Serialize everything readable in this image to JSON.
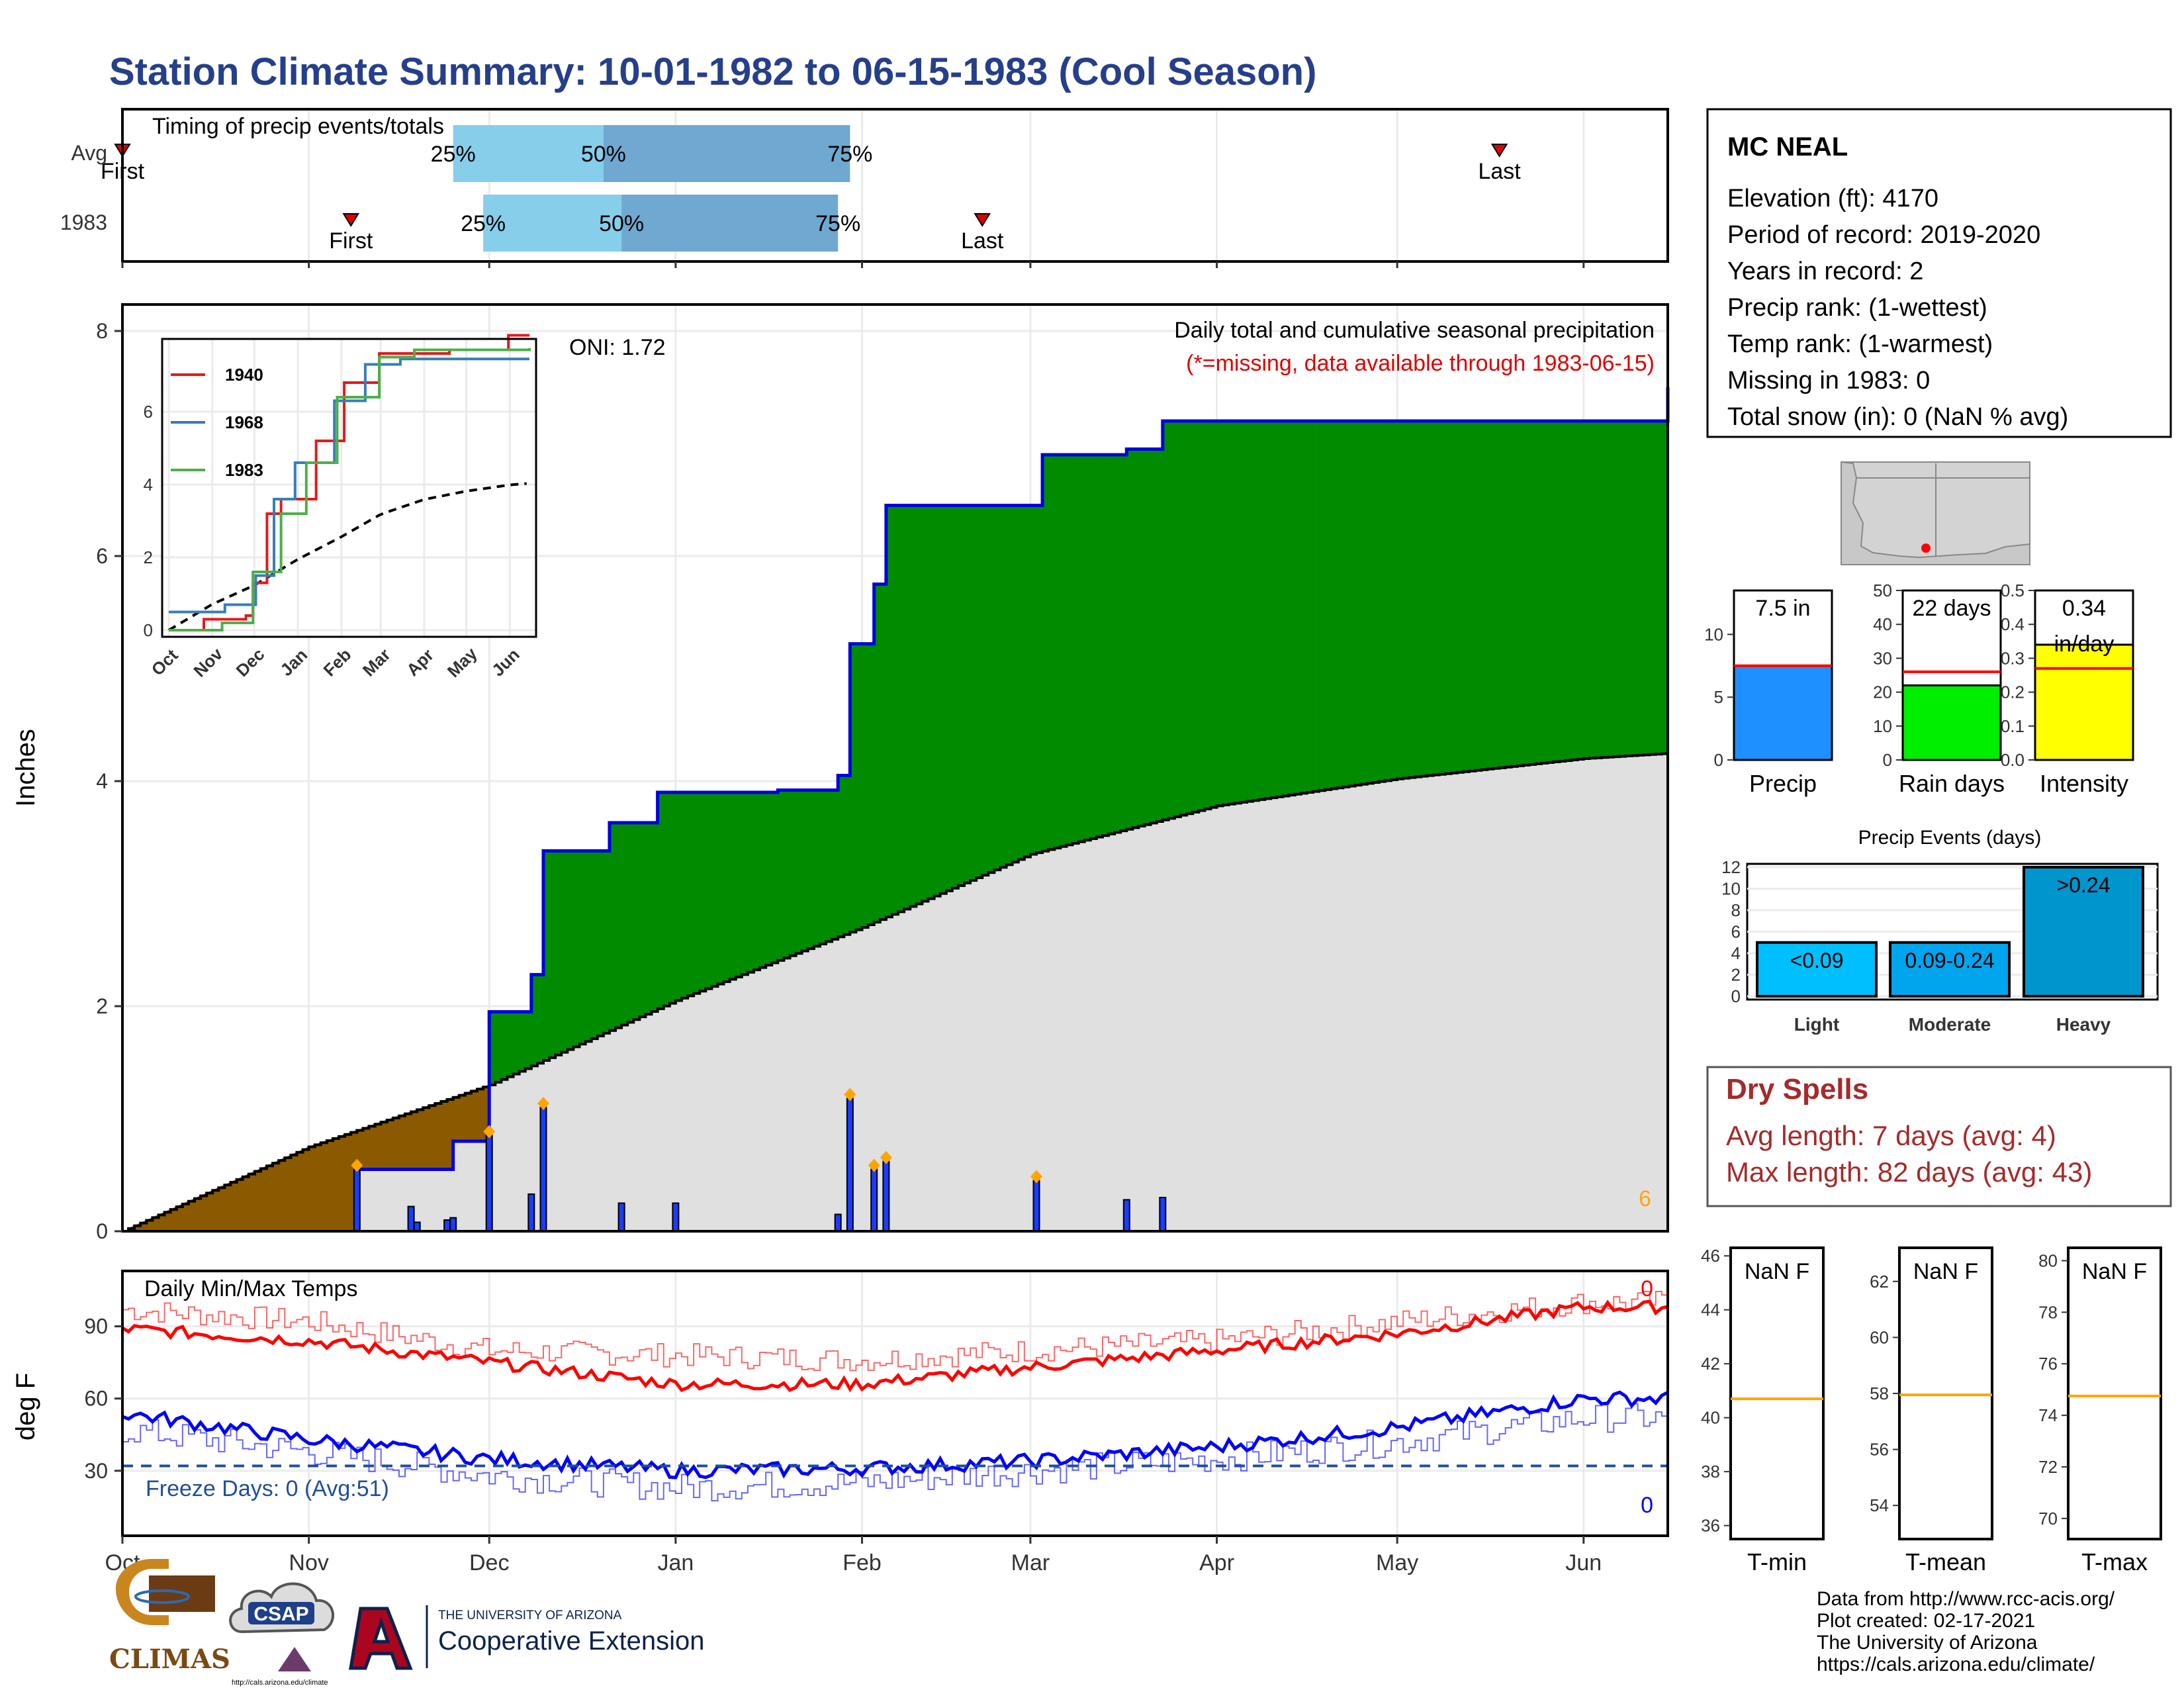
{
  "page": {
    "title": "Station Climate Summary: 10-01-1982 to 06-15-1983 (Cool Season)"
  },
  "timing": {
    "title": "Timing of precip events/totals",
    "rows": [
      {
        "label": "Avg",
        "first_label": "First",
        "last_label": "Last",
        "first_day": 0,
        "last_day": 229,
        "q25_day": 55,
        "q50_day": 80,
        "q75_day": 121,
        "p25": "25%",
        "p50": "50%",
        "p75": "75%"
      },
      {
        "label": "1983",
        "first_label": "First",
        "last_label": "Last",
        "first_day": 38,
        "last_day": 143,
        "q25_day": 60,
        "q50_day": 83,
        "q75_day": 119,
        "p25": "25%",
        "p50": "50%",
        "p75": "75%"
      }
    ],
    "colors": {
      "light": "#87ceeb",
      "dark": "#6fa8d0",
      "marker": "#e00000"
    }
  },
  "precip": {
    "ylabel": "Inches",
    "yticks": [
      "0",
      "2",
      "4",
      "6",
      "8"
    ],
    "oni": "ONI: 1.72",
    "caption": "Daily total and cumulative seasonal precipitation",
    "missing_note": "(*=missing, data available through 1983-06-15)",
    "corner_label": "6",
    "colors": {
      "above": "#008b00",
      "below": "#8b5a00",
      "avg_fill": "#e0e0e0",
      "daily": "#1a3cff",
      "marker": "#ffa500",
      "obs_line": "#0000e0"
    }
  },
  "inset": {
    "yticks": [
      "0",
      "2",
      "4",
      "6"
    ],
    "xticks": [
      "Oct",
      "Nov",
      "Dec",
      "Jan",
      "Feb",
      "Mar",
      "Apr",
      "May",
      "Jun"
    ],
    "legend": [
      {
        "name": "1940",
        "color": "#e41a1c"
      },
      {
        "name": "1968",
        "color": "#377eb8"
      },
      {
        "name": "1983",
        "color": "#4daf4a"
      }
    ]
  },
  "temps": {
    "title": "Daily Min/Max Temps",
    "ylabel": "deg F",
    "yticks": [
      "30",
      "60",
      "90"
    ],
    "freeze": "Freeze Days: 0 (Avg:51)",
    "max_count": "0",
    "min_count": "0",
    "colors": {
      "max": "#ff0000",
      "min": "#0000ff",
      "freeze": "#1f4e9c"
    }
  },
  "xaxis": {
    "months": [
      "Oct",
      "Nov",
      "Dec",
      "Jan",
      "Feb",
      "Mar",
      "Apr",
      "May",
      "Jun"
    ]
  },
  "station": {
    "name": "MC NEAL",
    "lines": [
      "Elevation (ft): 4170",
      "Period of record: 2019-2020",
      "Years in record: 2",
      "Precip rank:  (1-wettest)",
      "Temp rank:  (1-warmest)",
      "Missing in 1983: 0",
      "Total snow (in): 0 (NaN % avg)"
    ]
  },
  "mini_bars": [
    {
      "label": "Precip",
      "value_label": "7.5 in",
      "color": "#1e90ff",
      "ticks": [
        "0",
        "5",
        "10"
      ]
    },
    {
      "label": "Rain days",
      "value_label": "22 days",
      "color": "#00ee00",
      "ticks": [
        "0",
        "10",
        "20",
        "30",
        "40",
        "50"
      ]
    },
    {
      "label": "Intensity",
      "value_label": "0.34 in/day",
      "color": "#ffff00",
      "ticks": [
        "0.0",
        "0.1",
        "0.2",
        "0.3",
        "0.4",
        "0.5"
      ]
    }
  ],
  "events": {
    "title": "Precip Events (days)",
    "yticks": [
      "0",
      "2",
      "4",
      "6",
      "8",
      "10",
      "12"
    ],
    "categories": [
      "Light",
      "Moderate",
      "Heavy"
    ],
    "bar_labels": [
      "<0.09",
      "0.09-0.24",
      ">0.24"
    ],
    "colors": [
      "#00bfff",
      "#00a5ee",
      "#0095cc"
    ]
  },
  "dry_spells": {
    "title": "Dry Spells",
    "avg": "Avg length: 7 days (avg: 4)",
    "max": "Max length: 82 days (avg: 43)",
    "color": "#a52a2a"
  },
  "temp_boxes": [
    {
      "label": "T-min",
      "value_label": "NaN F",
      "ticks": [
        "36",
        "38",
        "40",
        "42",
        "44",
        "46"
      ]
    },
    {
      "label": "T-mean",
      "value_label": "NaN F",
      "ticks": [
        "54",
        "56",
        "58",
        "60",
        "62"
      ]
    },
    {
      "label": "T-max",
      "value_label": "NaN F",
      "ticks": [
        "70",
        "72",
        "74",
        "76",
        "78",
        "80"
      ]
    }
  ],
  "logos": {
    "climas": "CLIMAS",
    "csap": "CSAP",
    "csap_url": "http://cals.arizona.edu/climate",
    "ua_small": "THE UNIVERSITY OF ARIZONA",
    "ua_big": "Cooperative Extension"
  },
  "credits": [
    "Data from http://www.rcc-acis.org/",
    "Plot created: 02-17-2021",
    "The University of Arizona",
    "https://cals.arizona.edu/climate/"
  ],
  "chart_data": [
    {
      "type": "bar",
      "title": "Timing of precip events/totals",
      "categories": [
        "Avg",
        "1983"
      ],
      "note": "x in days since Oct 1",
      "series": [
        {
          "name": "First",
          "values": [
            0,
            38
          ]
        },
        {
          "name": "25%",
          "values": [
            55,
            60
          ]
        },
        {
          "name": "50%",
          "values": [
            80,
            83
          ]
        },
        {
          "name": "75%",
          "values": [
            121,
            119
          ]
        },
        {
          "name": "Last",
          "values": [
            229,
            143
          ]
        }
      ]
    },
    {
      "type": "area",
      "title": "Daily total and cumulative seasonal precipitation",
      "ylabel": "Inches",
      "ylim": [
        0,
        8
      ],
      "x_dates": [
        "1982-10-01",
        "1982-11-09",
        "1982-11-25",
        "1982-12-01",
        "1982-12-08",
        "1982-12-10",
        "1982-12-21",
        "1982-12-29",
        "1983-01-07",
        "1983-01-18",
        "1983-01-28",
        "1983-01-30",
        "1983-02-03",
        "1983-02-05",
        "1983-03-02",
        "1983-03-03",
        "1983-03-17",
        "1983-03-23",
        "1983-06-15"
      ],
      "series": [
        {
          "name": "Cumulative observed",
          "values": [
            0,
            0.55,
            0.8,
            1.95,
            2.28,
            3.38,
            3.63,
            3.9,
            3.9,
            3.92,
            4.05,
            5.22,
            5.75,
            6.45,
            6.45,
            6.9,
            6.95,
            7.2,
            7.5
          ]
        }
      ],
      "average_cumulative": {
        "x_months": [
          "Oct",
          "Nov",
          "Dec",
          "Jan",
          "Feb",
          "Mar",
          "Apr",
          "May",
          "Jun"
        ],
        "values": [
          0,
          0.75,
          1.3,
          2.05,
          2.7,
          3.35,
          3.78,
          4.02,
          4.2
        ]
      },
      "daily_totals": {
        "dates": [
          "1982-11-09",
          "1982-11-18",
          "1982-11-19",
          "1982-11-24",
          "1982-11-25",
          "1982-12-01",
          "1982-12-08",
          "1982-12-10",
          "1982-12-23",
          "1983-01-01",
          "1983-01-28",
          "1983-01-30",
          "1983-02-03",
          "1983-02-05",
          "1983-03-02",
          "1983-03-17",
          "1983-03-23"
        ],
        "values": [
          0.55,
          0.22,
          0.08,
          0.1,
          0.12,
          0.85,
          0.33,
          1.1,
          0.25,
          0.25,
          0.15,
          1.18,
          0.55,
          0.62,
          0.45,
          0.28,
          0.3
        ]
      },
      "oni": 1.72
    },
    {
      "type": "line",
      "title": "Daily Min/Max Temps",
      "ylabel": "deg F",
      "x_months": [
        "Oct",
        "Nov",
        "Dec",
        "Jan",
        "Feb",
        "Mar",
        "Apr",
        "May",
        "Jun"
      ],
      "series": [
        {
          "name": "Max",
          "values": [
            89,
            84,
            75,
            66,
            66,
            73,
            80,
            87,
            98
          ]
        },
        {
          "name": "Min",
          "values": [
            54,
            43,
            35,
            30,
            31,
            34,
            40,
            48,
            60
          ]
        },
        {
          "name": "Avg Max",
          "values": [
            97,
            92,
            80,
            78,
            76,
            80,
            84,
            92,
            100
          ]
        },
        {
          "name": "Avg Min",
          "values": [
            47,
            38,
            28,
            23,
            25,
            30,
            35,
            42,
            52
          ]
        }
      ],
      "freeze_line": 32
    },
    {
      "type": "bar",
      "title": "Precip Events (days)",
      "categories": [
        "Light",
        "Moderate",
        "Heavy"
      ],
      "values": [
        5,
        5,
        12
      ],
      "ylim": [
        0,
        12
      ]
    },
    {
      "type": "bar",
      "categories": [
        "Precip",
        "Rain days",
        "Intensity"
      ],
      "values": [
        7.5,
        22,
        0.34
      ],
      "averages": [
        7.5,
        26,
        0.27
      ]
    }
  ]
}
